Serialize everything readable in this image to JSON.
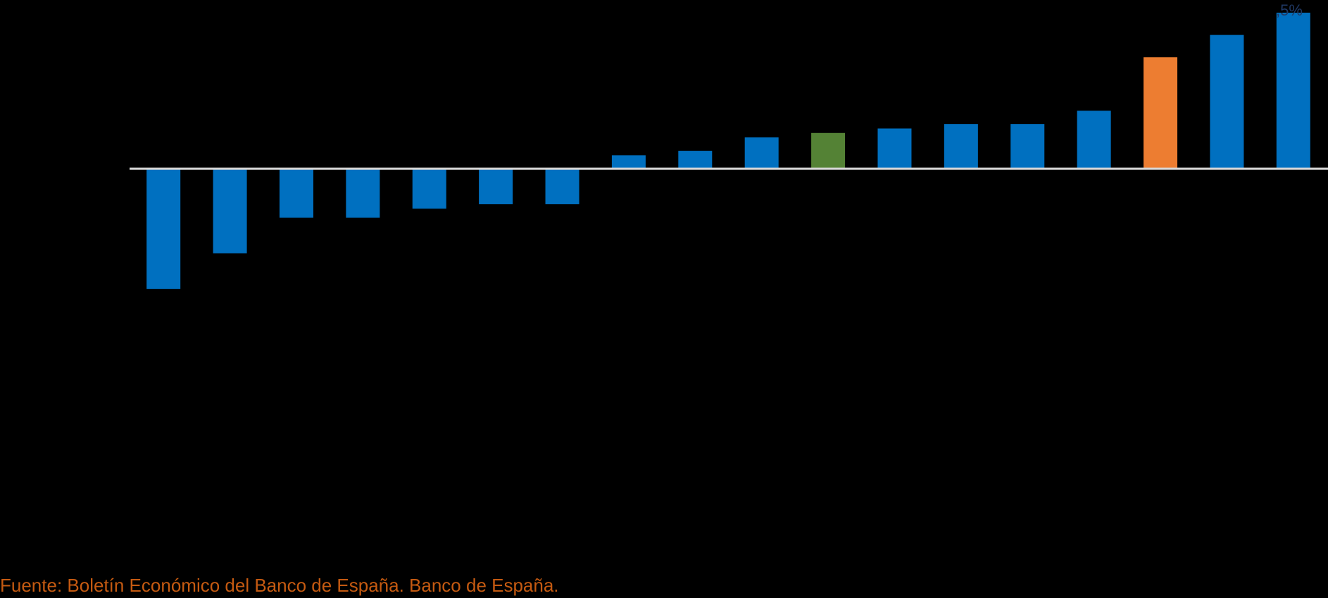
{
  "chart_data": {
    "type": "bar",
    "categories": [
      null,
      null,
      null,
      null,
      null,
      null,
      null,
      null,
      null,
      null,
      null,
      null,
      null,
      null,
      null,
      null,
      null,
      null
    ],
    "values": [
      -2.7,
      -1.9,
      -1.1,
      -1.1,
      -0.9,
      -0.8,
      -0.8,
      0.3,
      0.4,
      0.7,
      0.8,
      0.9,
      1.0,
      1.0,
      1.3,
      2.5,
      3.0,
      3.5
    ],
    "colors": [
      "#0070c0",
      "#0070c0",
      "#0070c0",
      "#0070c0",
      "#0070c0",
      "#0070c0",
      "#0070c0",
      "#0070c0",
      "#0070c0",
      "#0070c0",
      "#548235",
      "#0070c0",
      "#0070c0",
      "#0070c0",
      "#0070c0",
      "#ed7d31",
      "#0070c0",
      "#0070c0"
    ],
    "ylim": [
      -8.5,
      3.5
    ],
    "annotation": ",5%",
    "source": "Fuente: Boletín Económico del Banco de España. Banco de España."
  }
}
